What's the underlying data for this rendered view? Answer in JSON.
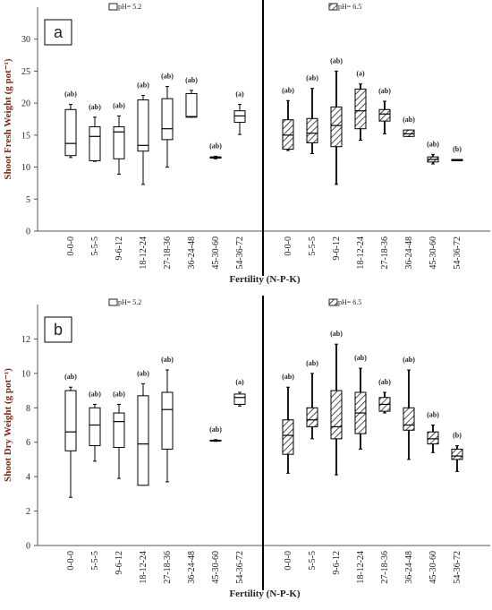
{
  "chart_data": [
    {
      "type": "box",
      "label": "a",
      "y_label": "Shoot Fresh Weight (g pot⁻¹)",
      "x_label": "Fertility (N-P-K)",
      "categories": [
        "0-0-0",
        "5-5-5",
        "9-6-12",
        "18-12-24",
        "27-18-36",
        "36-24-48",
        "45-30-60",
        "54-36-72"
      ],
      "ylim": [
        0,
        35
      ],
      "yticks": [
        0,
        5,
        10,
        15,
        20,
        25,
        30
      ],
      "series": [
        {
          "name": "pH= 5.2",
          "color": "#ffffff",
          "hatch": false,
          "values": [
            {
              "min": 11.5,
              "q1": 11.8,
              "median": 13.7,
              "q3": 19.0,
              "max": 19.8
            },
            {
              "min": 10.9,
              "q1": 11.0,
              "median": 14.8,
              "q3": 16.3,
              "max": 17.8
            },
            {
              "min": 8.9,
              "q1": 11.3,
              "median": 15.5,
              "q3": 16.3,
              "max": 18.0
            },
            {
              "min": 7.3,
              "q1": 12.5,
              "median": 13.4,
              "q3": 20.5,
              "max": 21.2
            },
            {
              "min": 10.0,
              "q1": 14.3,
              "median": 16.0,
              "q3": 20.7,
              "max": 22.6
            },
            {
              "min": 17.8,
              "q1": 17.8,
              "median": 17.9,
              "q3": 21.5,
              "max": 22.0
            },
            {
              "min": 11.3,
              "q1": 11.4,
              "median": 11.5,
              "q3": 11.6,
              "max": 11.7
            },
            {
              "min": 15.1,
              "q1": 17.0,
              "median": 18.0,
              "q3": 18.8,
              "max": 19.8
            }
          ],
          "letters": [
            "(ab)",
            "(ab)",
            "(ab)",
            "(ab)",
            "(ab)",
            "(ab)",
            "(ab)",
            "(a)"
          ]
        },
        {
          "name": "pH= 6.5",
          "color": "#ffffff",
          "hatch": true,
          "values": [
            {
              "min": 12.6,
              "q1": 12.8,
              "median": 15.0,
              "q3": 17.4,
              "max": 20.4
            },
            {
              "min": 12.1,
              "q1": 13.8,
              "median": 15.3,
              "q3": 17.6,
              "max": 22.3
            },
            {
              "min": 7.3,
              "q1": 13.2,
              "median": 16.5,
              "q3": 19.4,
              "max": 25.0
            },
            {
              "min": 14.2,
              "q1": 16.0,
              "median": 18.8,
              "q3": 22.2,
              "max": 23.0
            },
            {
              "min": 15.2,
              "q1": 17.2,
              "median": 18.3,
              "q3": 19.0,
              "max": 20.3
            },
            {
              "min": 14.8,
              "q1": 14.8,
              "median": 15.2,
              "q3": 15.8,
              "max": 15.8
            },
            {
              "min": 10.5,
              "q1": 10.8,
              "median": 11.2,
              "q3": 11.6,
              "max": 12.0
            },
            {
              "min": 11.0,
              "q1": 11.0,
              "median": 11.1,
              "q3": 11.2,
              "max": 11.2
            }
          ],
          "letters": [
            "(ab)",
            "(ab)",
            "(ab)",
            "(a)",
            "(ab)",
            "(ab)",
            "(ab)",
            "(b)"
          ]
        }
      ]
    },
    {
      "type": "box",
      "label": "b",
      "y_label": "Shoot Dry Weight (g pot⁻¹)",
      "x_label": "Fertility (N-P-K)",
      "categories": [
        "0-0-0",
        "5-5-5",
        "9-6-12",
        "18-12-24",
        "27-18-36",
        "36-24-48",
        "45-30-60",
        "54-36-72"
      ],
      "ylim": [
        0,
        14
      ],
      "yticks": [
        0,
        2,
        4,
        6,
        8,
        10,
        12
      ],
      "series": [
        {
          "name": "pH= 5.2",
          "color": "#ffffff",
          "hatch": false,
          "values": [
            {
              "min": 2.8,
              "q1": 5.5,
              "median": 6.6,
              "q3": 9.0,
              "max": 9.2
            },
            {
              "min": 4.9,
              "q1": 5.8,
              "median": 7.0,
              "q3": 8.0,
              "max": 8.2
            },
            {
              "min": 3.9,
              "q1": 5.7,
              "median": 7.2,
              "q3": 7.7,
              "max": 8.2
            },
            {
              "min": 3.5,
              "q1": 3.5,
              "median": 5.9,
              "q3": 8.7,
              "max": 9.4
            },
            {
              "min": 3.7,
              "q1": 5.6,
              "median": 7.9,
              "q3": 8.9,
              "max": 10.2
            },
            null,
            {
              "min": 6.05,
              "q1": 6.08,
              "median": 6.1,
              "q3": 6.12,
              "max": 6.15
            },
            {
              "min": 8.1,
              "q1": 8.2,
              "median": 8.6,
              "q3": 8.8,
              "max": 8.9
            }
          ],
          "letters": [
            "(ab)",
            "(ab)",
            "(ab)",
            "(ab)",
            "(ab)",
            null,
            "(ab)",
            "(a)"
          ]
        },
        {
          "name": "pH= 6.5",
          "color": "#ffffff",
          "hatch": true,
          "values": [
            {
              "min": 4.2,
              "q1": 5.3,
              "median": 6.4,
              "q3": 7.3,
              "max": 9.2
            },
            {
              "min": 6.2,
              "q1": 6.9,
              "median": 7.3,
              "q3": 8.0,
              "max": 10.0
            },
            {
              "min": 4.1,
              "q1": 6.2,
              "median": 6.9,
              "q3": 9.0,
              "max": 11.7
            },
            {
              "min": 5.6,
              "q1": 6.5,
              "median": 7.7,
              "q3": 8.9,
              "max": 10.3
            },
            {
              "min": 7.7,
              "q1": 7.8,
              "median": 8.2,
              "q3": 8.6,
              "max": 8.9
            },
            {
              "min": 5.0,
              "q1": 6.7,
              "median": 7.0,
              "q3": 8.0,
              "max": 10.2
            },
            {
              "min": 5.4,
              "q1": 5.9,
              "median": 6.2,
              "q3": 6.6,
              "max": 7.0
            },
            {
              "min": 4.3,
              "q1": 5.0,
              "median": 5.2,
              "q3": 5.6,
              "max": 5.8
            }
          ],
          "letters": [
            "(ab)",
            "(ab)",
            "(ab)",
            "(ab)",
            "(ab)",
            "(ab)",
            "(ab)",
            "(b)"
          ]
        }
      ]
    }
  ]
}
